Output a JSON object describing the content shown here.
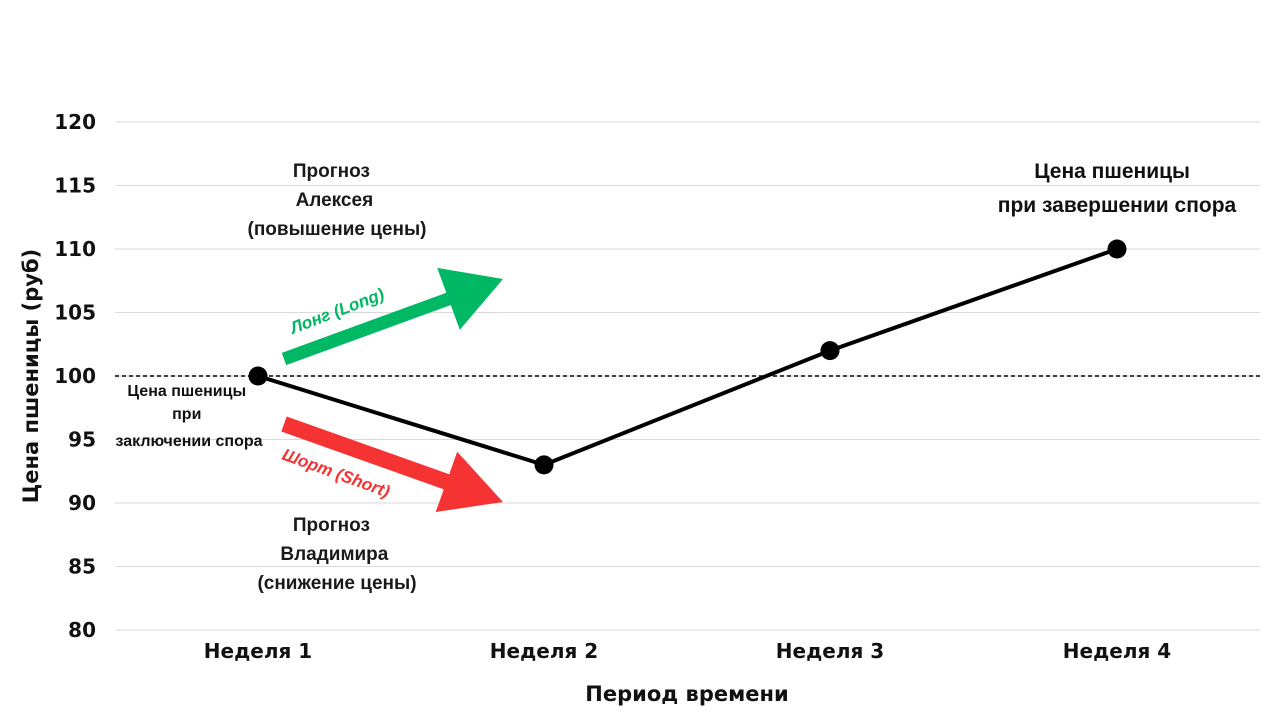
{
  "chart_data": {
    "type": "line",
    "title": "",
    "xlabel": "Период времени",
    "ylabel": "Цена пшеницы (руб)",
    "categories": [
      "Неделя 1",
      "Неделя 2",
      "Неделя 3",
      "Неделя 4"
    ],
    "series": [
      {
        "values": [
          100,
          93,
          102,
          110
        ],
        "color": "#000000"
      }
    ],
    "ylim": [
      80,
      120
    ],
    "yticks": [
      80,
      85,
      90,
      95,
      100,
      105,
      110,
      115,
      120
    ],
    "grid": true,
    "reference_line": {
      "value": 100,
      "style": "dashed"
    },
    "annotations": {
      "alexey_forecast": [
        "Прогноз",
        "Алексея",
        "(повышение цены)"
      ],
      "vladimir_forecast": [
        "Прогноз",
        "Владимира",
        "(снижение цены)"
      ],
      "final_price": [
        "Цена пшеницы",
        "при завершении спора"
      ],
      "start_price": [
        "Цена пшеницы",
        "при",
        "заключении спора"
      ],
      "long_label": "Лонг (Long)",
      "short_label": "Шорт (Short)"
    },
    "colors": {
      "long": "#00b863",
      "short": "#f53333",
      "grid": "#d9d9d9"
    }
  }
}
